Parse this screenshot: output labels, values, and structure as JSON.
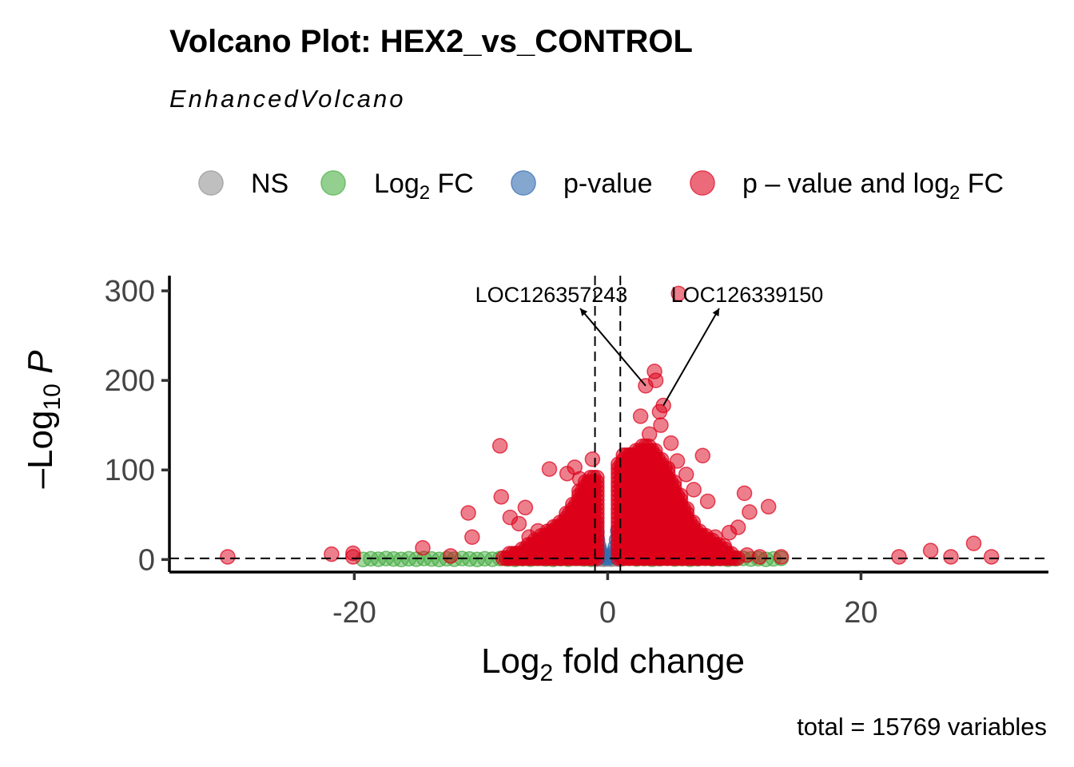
{
  "chart_data": {
    "type": "scatter",
    "title": "Volcano Plot: HEX2_vs_CONTROL",
    "subtitle": "EnhancedVolcano",
    "caption": "total = 15769 variables",
    "xlabel": {
      "main": "Log",
      "sub": "2",
      "rest": " fold change"
    },
    "ylabel": {
      "main": "–Log",
      "sub": "10",
      "rest": " P"
    },
    "xlim": [
      -34.6,
      34.8
    ],
    "ylim": [
      -14,
      317
    ],
    "x_ticks": [
      -20,
      0,
      20
    ],
    "x_tick_labels": [
      "-20",
      "0",
      "20"
    ],
    "y_ticks": [
      0,
      100,
      200,
      300
    ],
    "y_tick_labels": [
      "0",
      "100",
      "200",
      "300"
    ],
    "grid": false,
    "legend_position": "top",
    "cutoffs": {
      "log2fc": [
        -1,
        1
      ],
      "neg_log10_p": 1.3
    },
    "legend": [
      {
        "key": "ns",
        "main": "NS",
        "sub": "",
        "rest": "",
        "color": "#a9a9a9"
      },
      {
        "key": "fc",
        "main": "Log",
        "sub": "2",
        "rest": " FC",
        "color": "#6fbf6a"
      },
      {
        "key": "p",
        "main": "p-value",
        "sub": "",
        "rest": "",
        "color": "#5b8ac0"
      },
      {
        "key": "both",
        "main": "p – value and log",
        "sub": "2",
        "rest": " FC",
        "color": "#e4394f"
      }
    ],
    "series": {
      "ns": {
        "color": "#8c8c8c",
        "points": [
          [
            -0.9,
            0.3
          ],
          [
            -0.6,
            0.6
          ],
          [
            -0.3,
            0.2
          ],
          [
            0,
            0.5
          ],
          [
            0.3,
            0.3
          ],
          [
            0.6,
            0.7
          ],
          [
            0.9,
            0.2
          ],
          [
            -0.8,
            1
          ],
          [
            0.5,
            1
          ]
        ]
      },
      "p": {
        "color": "#2f6fb0",
        "points": [
          [
            -0.9,
            40
          ],
          [
            -0.85,
            30
          ],
          [
            -0.8,
            22
          ],
          [
            -0.7,
            15
          ],
          [
            -0.6,
            10
          ],
          [
            -0.5,
            6
          ],
          [
            -0.4,
            4
          ],
          [
            0.3,
            4
          ],
          [
            0.5,
            8
          ],
          [
            0.6,
            14
          ],
          [
            0.7,
            22
          ],
          [
            0.8,
            32
          ],
          [
            0.9,
            26
          ],
          [
            -0.2,
            2
          ],
          [
            0.1,
            2
          ]
        ]
      },
      "fc": {
        "color": "#3ea83a",
        "x_range": [
          -19.3,
          14
        ],
        "y_range": [
          0,
          1.3
        ]
      },
      "both": {
        "color": "#dc0019",
        "points": [
          [
            -30,
            3
          ],
          [
            -21.8,
            6
          ],
          [
            -20.1,
            3
          ],
          [
            -20.1,
            7
          ],
          [
            -14.6,
            13
          ],
          [
            -12.4,
            4
          ],
          [
            -11,
            52
          ],
          [
            -10.7,
            25
          ],
          [
            -8.5,
            127
          ],
          [
            -8.4,
            70
          ],
          [
            -7.7,
            47
          ],
          [
            -7,
            40
          ],
          [
            -6.5,
            58
          ],
          [
            -6.2,
            25
          ],
          [
            -5.5,
            32
          ],
          [
            -4.6,
            101
          ],
          [
            -3.2,
            96
          ],
          [
            -2.6,
            103
          ],
          [
            -2.2,
            90
          ],
          [
            -1.2,
            112
          ],
          [
            2.6,
            160
          ],
          [
            3.0,
            194
          ],
          [
            3.3,
            140
          ],
          [
            3.7,
            210
          ],
          [
            3.8,
            200
          ],
          [
            4.1,
            165
          ],
          [
            4.4,
            172
          ],
          [
            4.2,
            150
          ],
          [
            5.0,
            130
          ],
          [
            5.6,
            297
          ],
          [
            5.5,
            110
          ],
          [
            6.2,
            95
          ],
          [
            6.8,
            78
          ],
          [
            7.5,
            116
          ],
          [
            7.9,
            65
          ],
          [
            8.5,
            25
          ],
          [
            9.2,
            15
          ],
          [
            9.6,
            30
          ],
          [
            10.3,
            36
          ],
          [
            10.8,
            74
          ],
          [
            11.2,
            53
          ],
          [
            11,
            5
          ],
          [
            12,
            3
          ],
          [
            12.7,
            59
          ],
          [
            13.7,
            3
          ],
          [
            23,
            3
          ],
          [
            25.5,
            10
          ],
          [
            27.1,
            3
          ],
          [
            28.9,
            18
          ],
          [
            30.3,
            3
          ]
        ],
        "dense_envelope": [
          [
            -8,
            6
          ],
          [
            -7.5,
            8
          ],
          [
            -7,
            10
          ],
          [
            -6.5,
            14
          ],
          [
            -6,
            18
          ],
          [
            -5.5,
            22
          ],
          [
            -5,
            28
          ],
          [
            -4.5,
            32
          ],
          [
            -4,
            38
          ],
          [
            -3.5,
            45
          ],
          [
            -3,
            55
          ],
          [
            -2.5,
            65
          ],
          [
            -2,
            80
          ],
          [
            -1.5,
            88
          ],
          [
            -1.1,
            92
          ],
          [
            1.1,
            110
          ],
          [
            1.5,
            118
          ],
          [
            2,
            120
          ],
          [
            2.5,
            125
          ],
          [
            3,
            130
          ],
          [
            3.5,
            125
          ],
          [
            4,
            115
          ],
          [
            4.5,
            105
          ],
          [
            5,
            90
          ],
          [
            5.5,
            75
          ],
          [
            6,
            60
          ],
          [
            6.5,
            45
          ],
          [
            7,
            35
          ],
          [
            7.5,
            28
          ],
          [
            8,
            22
          ],
          [
            8.5,
            17
          ],
          [
            9,
            12
          ],
          [
            9.5,
            8
          ],
          [
            10,
            6
          ]
        ]
      }
    },
    "labelled_genes": [
      {
        "name": "LOC126357243",
        "x": 3.0,
        "y": 194
      },
      {
        "name": "LOC126339150",
        "x": 4.4,
        "y": 172
      }
    ]
  }
}
